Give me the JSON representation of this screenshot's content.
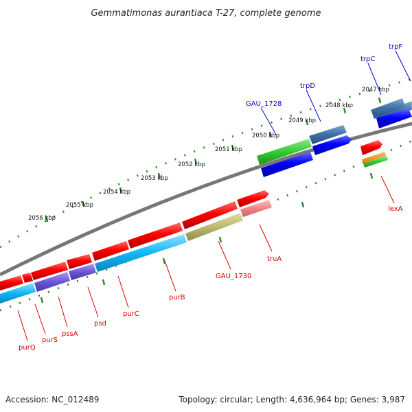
{
  "title": "Gemmatimonas aurantiaca T-27, complete genome",
  "footer": {
    "accession": "Accession: NC_012489",
    "summary": "Topology: circular; Length: 4,636,964 bp; Genes: 3,987"
  },
  "scale_labels": [
    "2047 kbp",
    "2048 kbp",
    "2049 kbp",
    "2050 kbp",
    "2051 kbp",
    "2052 kbp",
    "2053 kbp",
    "2054 kbp",
    "2055 kbp",
    "2056 kbp"
  ],
  "genes": {
    "trpF": "trpF",
    "trpC": "trpC",
    "trpD": "trpD",
    "GAU_1728": "GAU_1728",
    "lexA": "lexA",
    "truA": "truA",
    "GAU_1730": "GAU_1730",
    "purB": "purB",
    "purC": "purC",
    "psd": "psd",
    "pssA": "pssA",
    "purS": "purS",
    "purQ": "purQ"
  },
  "colors": {
    "forward_gene": "#0000ee",
    "reverse_gene": "#ee0000",
    "backbone": "#808080",
    "ticks": "#2a8a2a",
    "label_red": "#dd0000",
    "label_blue": "#0000cc"
  }
}
